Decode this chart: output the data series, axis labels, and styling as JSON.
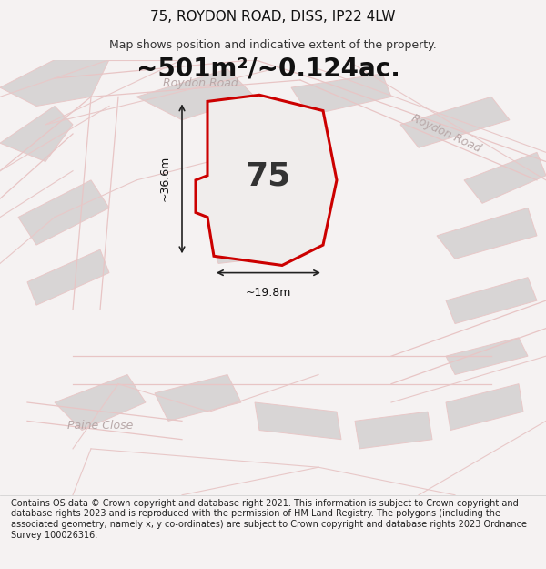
{
  "title": "75, ROYDON ROAD, DISS, IP22 4LW",
  "subtitle": "Map shows position and indicative extent of the property.",
  "area_text": "~501m²/~0.124ac.",
  "number_label": "75",
  "width_label": "~19.8m",
  "height_label": "~36.6m",
  "road_label_1": "Roydon Road",
  "road_label_2": "Roydon Road",
  "street_label": "Paine Close",
  "footer_text": "Contains OS data © Crown copyright and database right 2021. This information is subject to Crown copyright and database rights 2023 and is reproduced with the permission of HM Land Registry. The polygons (including the associated geometry, namely x, y co-ordinates) are subject to Crown copyright and database rights 2023 Ordnance Survey 100026316.",
  "bg_color": "#f0eeee",
  "map_bg": "#f5f3f3",
  "plot_fill": "#f5f3f3",
  "plot_edge": "#cc0000",
  "building_fill": "#d8d5d5",
  "road_color": "#e8c8c8",
  "road_label_color": "#b0a0a0",
  "dim_color": "#222222",
  "title_fontsize": 11,
  "subtitle_fontsize": 9,
  "area_fontsize": 22,
  "number_fontsize": 28,
  "footer_fontsize": 7
}
